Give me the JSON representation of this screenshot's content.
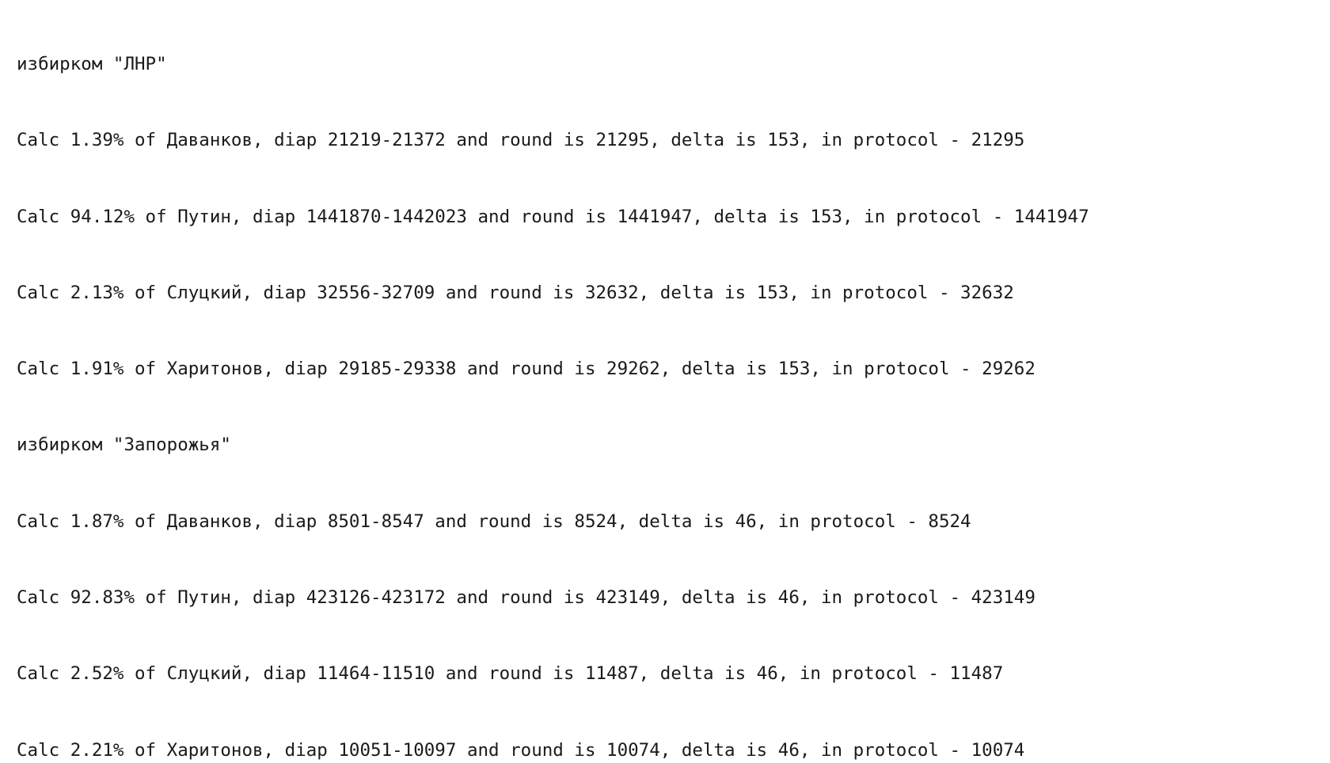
{
  "console": {
    "lines": [
      "избирком \"ЛНР\"",
      "Calc 1.39% of Даванков, diap 21219-21372 and round is 21295, delta is 153, in protocol - 21295",
      "Calc 94.12% of Путин, diap 1441870-1442023 and round is 1441947, delta is 153, in protocol - 1441947",
      "Calc 2.13% of Слуцкий, diap 32556-32709 and round is 32632, delta is 153, in protocol - 32632",
      "Calc 1.91% of Харитонов, diap 29185-29338 and round is 29262, delta is 153, in protocol - 29262",
      "избирком \"Запорожья\"",
      "Calc 1.87% of Даванков, diap 8501-8547 and round is 8524, delta is 46, in protocol - 8524",
      "Calc 92.83% of Путин, diap 423126-423172 and round is 423149, delta is 46, in protocol - 423149",
      "Calc 2.52% of Слуцкий, diap 11464-11510 and round is 11487, delta is 46, in protocol - 11487",
      "Calc 2.21% of Харитонов, diap 10051-10097 and round is 10074, delta is 46, in protocol - 10074"
    ]
  }
}
